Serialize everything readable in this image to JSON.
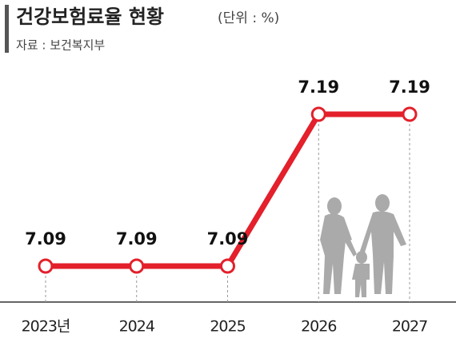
{
  "chart_data": {
    "type": "line",
    "title": "건강보험료율 현황",
    "subtitle": "(단위 : %)",
    "source": "자료 : 보건복지부",
    "categories": [
      "2023년",
      "2024",
      "2025",
      "2026",
      "2027"
    ],
    "values": [
      7.09,
      7.09,
      7.09,
      7.19,
      7.19
    ],
    "color": "#e3202b"
  }
}
